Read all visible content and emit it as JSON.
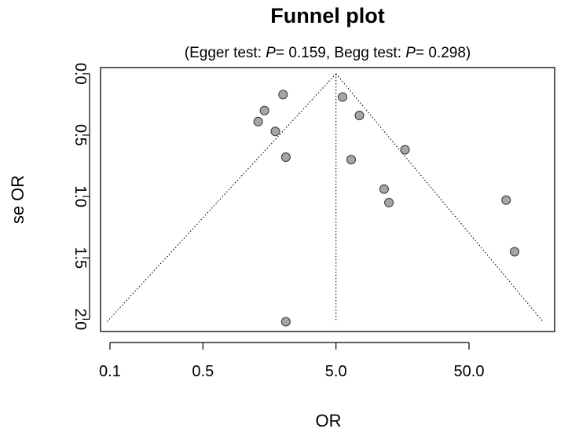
{
  "chart_data": {
    "type": "scatter",
    "title": "Funnel plot",
    "subtitle": {
      "prefix": "(Egger test: ",
      "egger_p_label": "P",
      "egger_value": "= 0.159, Begg test: ",
      "begg_p_label": "P",
      "begg_value": "= 0.298)"
    },
    "xlabel": "OR",
    "ylabel": "se OR",
    "x_scale": "log",
    "x_ticks": [
      0.1,
      0.5,
      5.0,
      50.0
    ],
    "x_tick_labels": [
      "0.1",
      "0.5",
      "5.0",
      "50.0"
    ],
    "xlim": [
      0.085,
      220
    ],
    "y_reversed": true,
    "y_ticks": [
      0.0,
      0.5,
      1.0,
      1.5,
      2.0
    ],
    "y_tick_labels": [
      "0.0",
      "0.5",
      "1.0",
      "1.5",
      "2.0"
    ],
    "ylim": [
      -0.05,
      2.1
    ],
    "summary_or": 5.0,
    "funnel": {
      "apex_se": 0.0,
      "base_se": 2.02,
      "left_or": 0.095,
      "right_or": 180
    },
    "points": [
      {
        "x": 2.0,
        "y": 0.17
      },
      {
        "x": 1.45,
        "y": 0.3
      },
      {
        "x": 1.3,
        "y": 0.39
      },
      {
        "x": 1.75,
        "y": 0.47
      },
      {
        "x": 2.1,
        "y": 0.68
      },
      {
        "x": 5.6,
        "y": 0.19
      },
      {
        "x": 7.5,
        "y": 0.34
      },
      {
        "x": 6.5,
        "y": 0.7
      },
      {
        "x": 16.5,
        "y": 0.62
      },
      {
        "x": 11.5,
        "y": 0.94
      },
      {
        "x": 12.5,
        "y": 1.05
      },
      {
        "x": 95.0,
        "y": 1.03
      },
      {
        "x": 110.0,
        "y": 1.45
      },
      {
        "x": 2.1,
        "y": 2.02
      }
    ],
    "colors": {
      "point_fill": "#a6a6a6",
      "point_stroke": "#3f3f3f",
      "line": "#000000"
    }
  }
}
